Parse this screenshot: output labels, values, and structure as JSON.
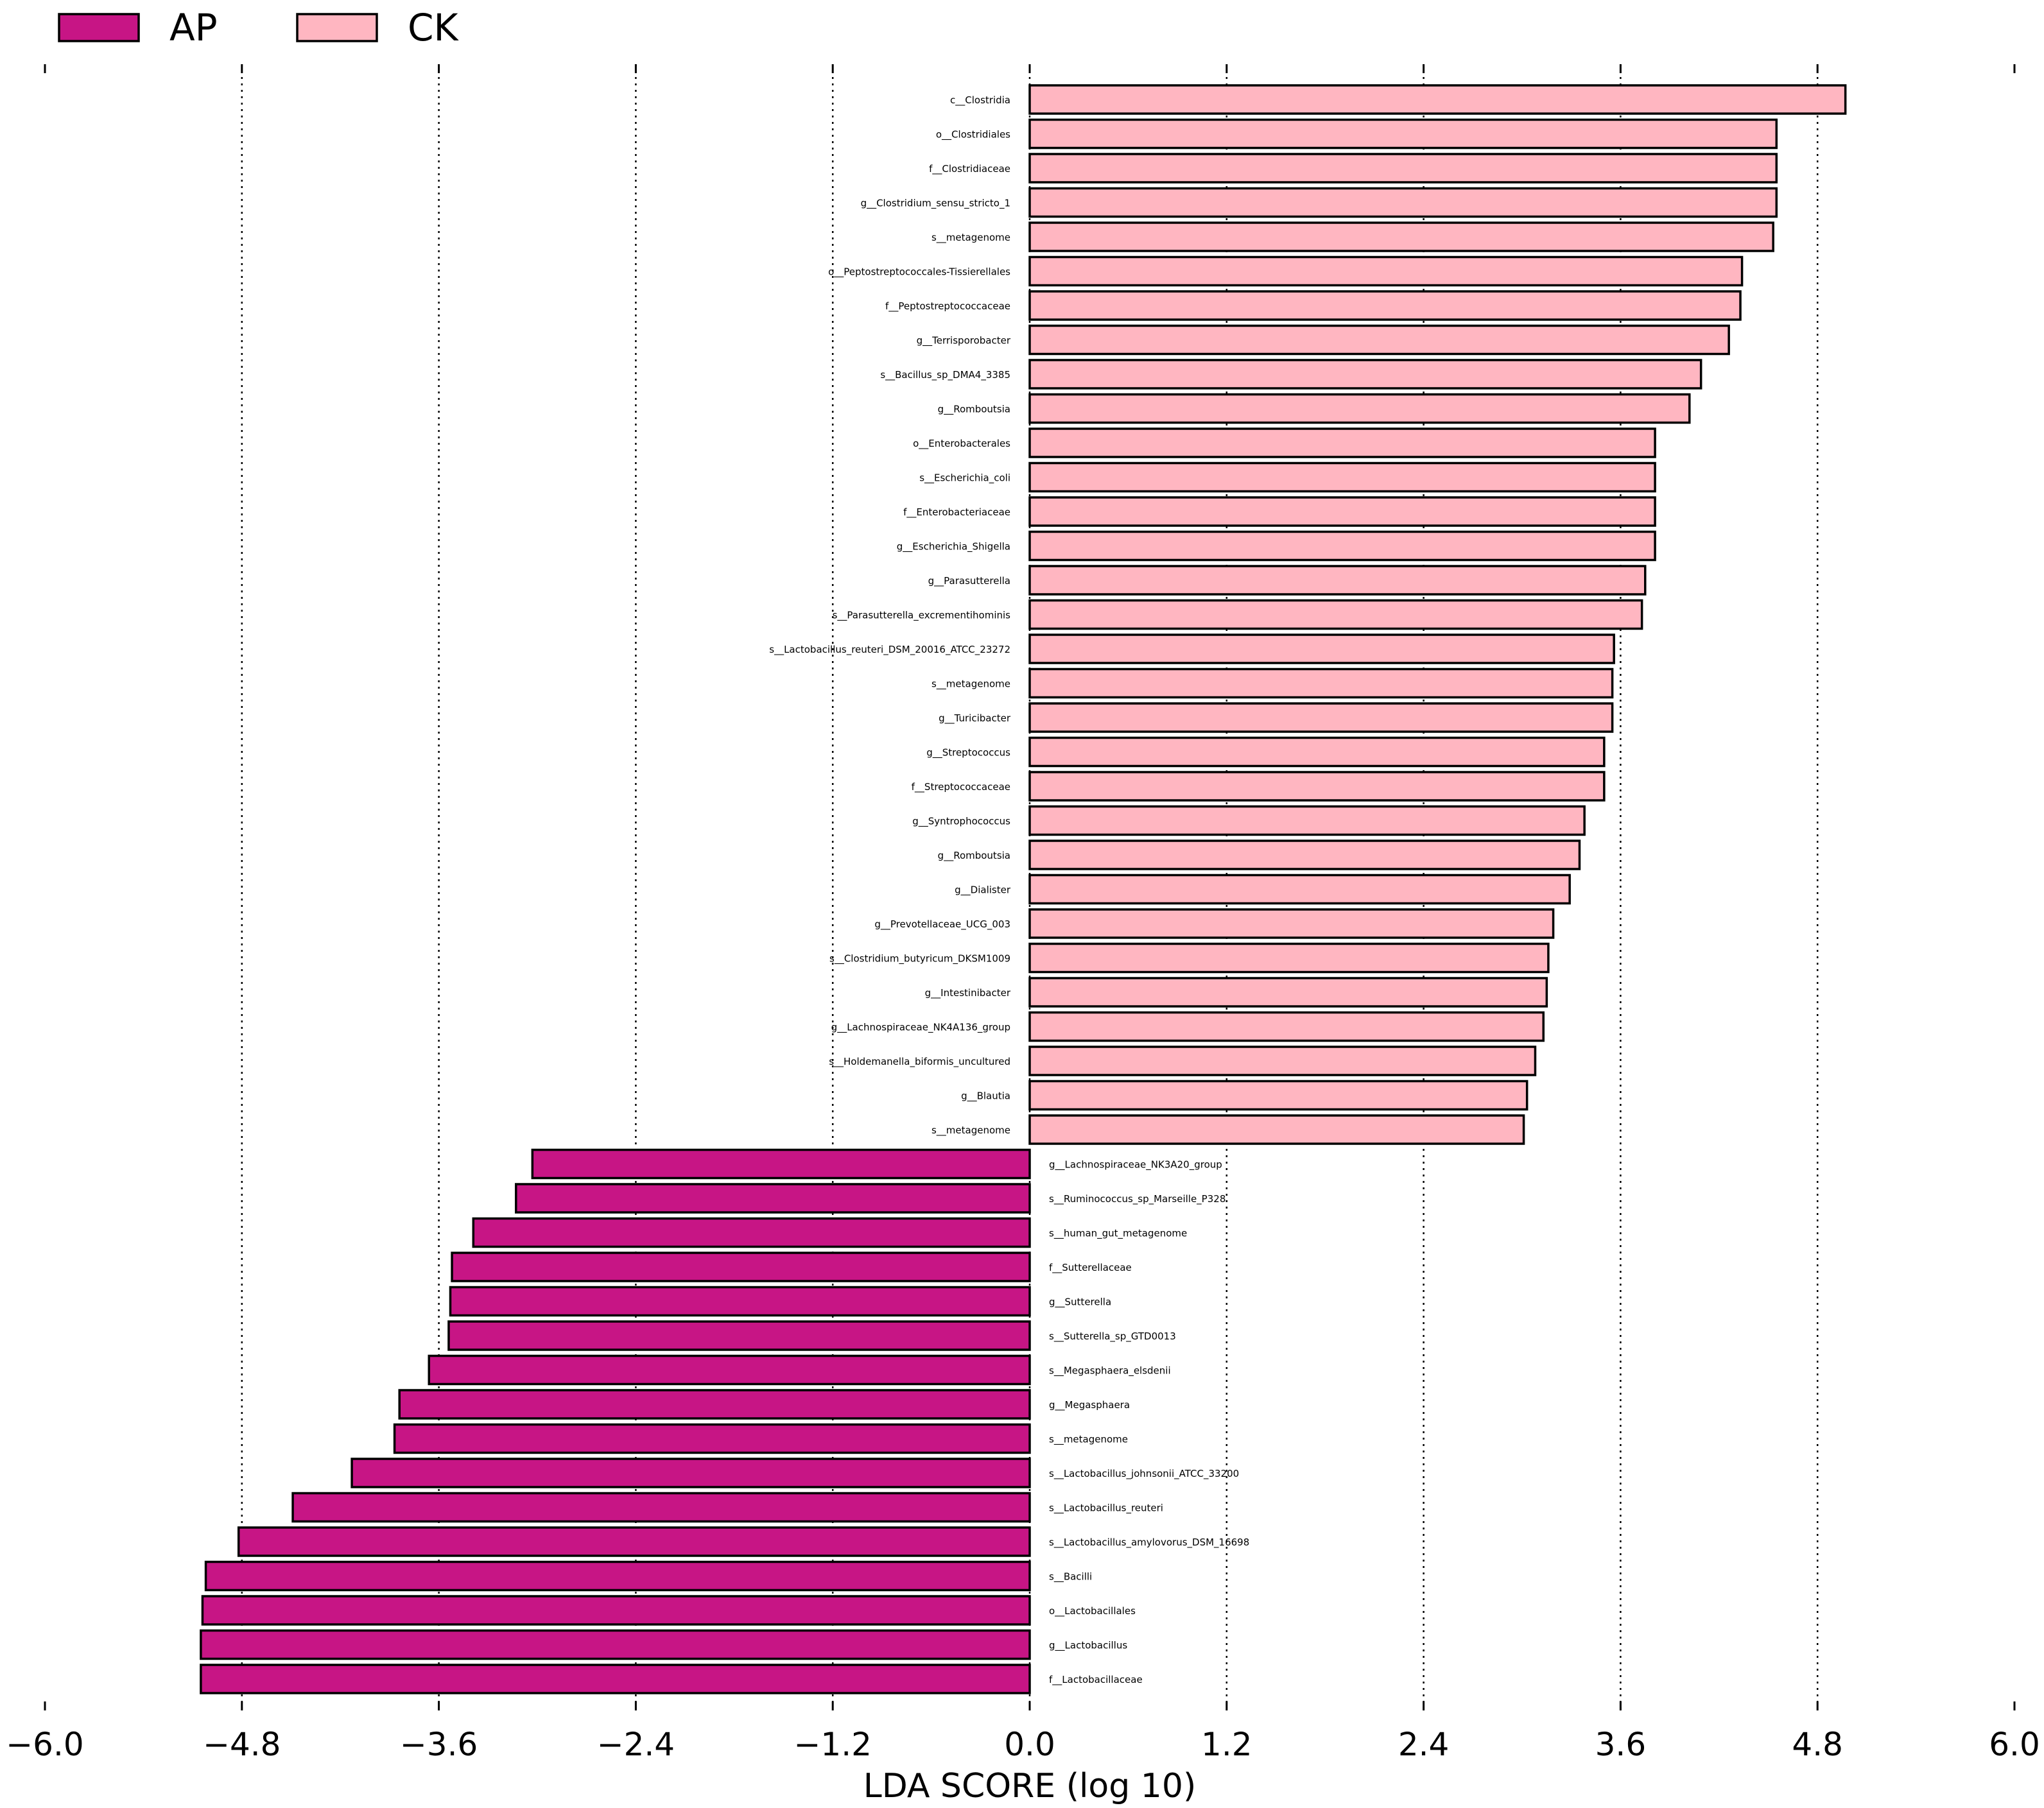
{
  "chart_data": {
    "type": "bar",
    "orientation": "horizontal",
    "xlabel": "LDA SCORE (log 10)",
    "xlim": [
      -6.0,
      6.0
    ],
    "xticks": [
      -6.0,
      -4.8,
      -3.6,
      -2.4,
      -1.2,
      0.0,
      1.2,
      2.4,
      3.6,
      4.8,
      6.0
    ],
    "xtick_labels": [
      "−6.0",
      "−4.8",
      "−3.6",
      "−2.4",
      "−1.2",
      "0.0",
      "1.2",
      "2.4",
      "3.6",
      "4.8",
      "6.0"
    ],
    "grid": "vertical dotted",
    "legend_position": "top-left",
    "colors": {
      "AP": "#c71585",
      "CK": "#ffb6c1",
      "edge": "#000000",
      "grid": "#000000"
    },
    "legend": [
      {
        "name": "AP",
        "color": "#c71585"
      },
      {
        "name": "CK",
        "color": "#ffb6c1"
      }
    ],
    "bars": [
      {
        "label": "c__Clostridia",
        "group": "CK",
        "value": 4.97
      },
      {
        "label": "o__Clostridiales",
        "group": "CK",
        "value": 4.55
      },
      {
        "label": "f__Clostridiaceae",
        "group": "CK",
        "value": 4.55
      },
      {
        "label": "g__Clostridium_sensu_stricto_1",
        "group": "CK",
        "value": 4.55
      },
      {
        "label": "s__metagenome",
        "group": "CK",
        "value": 4.53
      },
      {
        "label": "o__Peptostreptococcales-Tissierellales",
        "group": "CK",
        "value": 4.34
      },
      {
        "label": "f__Peptostreptococcaceae",
        "group": "CK",
        "value": 4.33
      },
      {
        "label": "g__Terrisporobacter",
        "group": "CK",
        "value": 4.26
      },
      {
        "label": "s__Bacillus_sp_DMA4_3385",
        "group": "CK",
        "value": 4.09
      },
      {
        "label": "g__Romboutsia",
        "group": "CK",
        "value": 4.02
      },
      {
        "label": "o__Enterobacterales",
        "group": "CK",
        "value": 3.81
      },
      {
        "label": "s__Escherichia_coli",
        "group": "CK",
        "value": 3.81
      },
      {
        "label": "f__Enterobacteriaceae",
        "group": "CK",
        "value": 3.81
      },
      {
        "label": "g__Escherichia_Shigella",
        "group": "CK",
        "value": 3.81
      },
      {
        "label": "g__Parasutterella",
        "group": "CK",
        "value": 3.75
      },
      {
        "label": "s__Parasutterella_excrementihominis",
        "group": "CK",
        "value": 3.73
      },
      {
        "label": "s__Lactobacillus_reuteri_DSM_20016_ATCC_23272",
        "group": "CK",
        "value": 3.56
      },
      {
        "label": "s__metagenome",
        "group": "CK",
        "value": 3.55
      },
      {
        "label": "g__Turicibacter",
        "group": "CK",
        "value": 3.55
      },
      {
        "label": "g__Streptococcus",
        "group": "CK",
        "value": 3.5
      },
      {
        "label": "f__Streptococcaceae",
        "group": "CK",
        "value": 3.5
      },
      {
        "label": "g__Syntrophococcus",
        "group": "CK",
        "value": 3.38
      },
      {
        "label": "g__Romboutsia",
        "group": "CK",
        "value": 3.35
      },
      {
        "label": "g__Dialister",
        "group": "CK",
        "value": 3.29
      },
      {
        "label": "g__Prevotellaceae_UCG_003",
        "group": "CK",
        "value": 3.19
      },
      {
        "label": "s__Clostridium_butyricum_DKSM1009",
        "group": "CK",
        "value": 3.16
      },
      {
        "label": "g__Intestinibacter",
        "group": "CK",
        "value": 3.15
      },
      {
        "label": "g__Lachnospiraceae_NK4A136_group",
        "group": "CK",
        "value": 3.13
      },
      {
        "label": "s__Holdemanella_biformis_uncultured",
        "group": "CK",
        "value": 3.08
      },
      {
        "label": "g__Blautia",
        "group": "CK",
        "value": 3.03
      },
      {
        "label": "s__metagenome",
        "group": "CK",
        "value": 3.01
      },
      {
        "label": "g__Lachnospiraceae_NK3A20_group",
        "group": "AP",
        "value": -3.03
      },
      {
        "label": "s__Ruminococcus_sp_Marseille_P328",
        "group": "AP",
        "value": -3.13
      },
      {
        "label": "s__human_gut_metagenome",
        "group": "AP",
        "value": -3.39
      },
      {
        "label": "f__Sutterellaceae",
        "group": "AP",
        "value": -3.52
      },
      {
        "label": "g__Sutterella",
        "group": "AP",
        "value": -3.53
      },
      {
        "label": "s__Sutterella_sp_GTD0013",
        "group": "AP",
        "value": -3.54
      },
      {
        "label": "s__Megasphaera_elsdenii",
        "group": "AP",
        "value": -3.66
      },
      {
        "label": "g__Megasphaera",
        "group": "AP",
        "value": -3.84
      },
      {
        "label": "s__metagenome",
        "group": "AP",
        "value": -3.87
      },
      {
        "label": "s__Lactobacillus_johnsonii_ATCC_33200",
        "group": "AP",
        "value": -4.13
      },
      {
        "label": "s__Lactobacillus_reuteri",
        "group": "AP",
        "value": -4.49
      },
      {
        "label": "s__Lactobacillus_amylovorus_DSM_16698",
        "group": "AP",
        "value": -4.82
      },
      {
        "label": "s__Bacilli",
        "group": "AP",
        "value": -5.02
      },
      {
        "label": "o__Lactobacillales",
        "group": "AP",
        "value": -5.04
      },
      {
        "label": "g__Lactobacillus",
        "group": "AP",
        "value": -5.05
      },
      {
        "label": "f__Lactobacillaceae",
        "group": "AP",
        "value": -5.05
      }
    ]
  }
}
